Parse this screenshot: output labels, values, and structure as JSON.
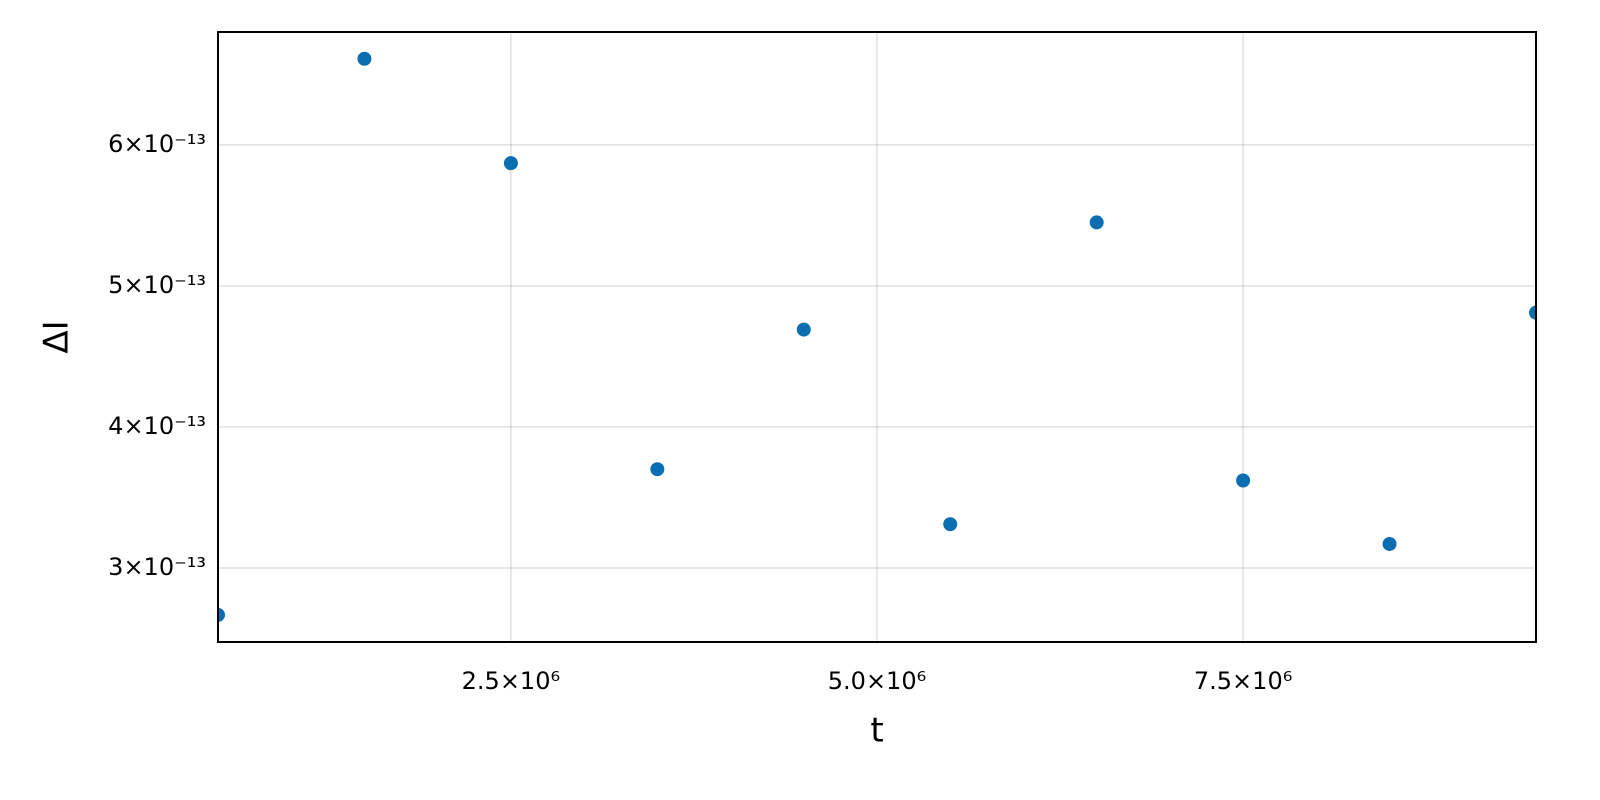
{
  "chart_data": {
    "type": "scatter",
    "x_label": "t",
    "y_label": "ΔI",
    "series": [
      {
        "color": "#0a6eb0",
        "x": [
          500000,
          1500000,
          2500000,
          3500000,
          4500000,
          5500000,
          6500000,
          7500000,
          8500000,
          9500000
        ],
        "values": [
          2.667e-13,
          6.61e-13,
          5.87e-13,
          3.7e-13,
          4.69e-13,
          3.31e-13,
          5.45e-13,
          3.62e-13,
          3.17e-13,
          4.81e-13
        ]
      }
    ],
    "xlim": [
      500000,
      9500000
    ],
    "xticks": [
      {
        "value": 2500000,
        "label": "2.5×10⁶"
      },
      {
        "value": 5000000,
        "label": "5.0×10⁶"
      },
      {
        "value": 7500000,
        "label": "7.5×10⁶"
      }
    ],
    "ylim": [
      2.475e-13,
      6.8e-13
    ],
    "yticks": [
      {
        "value": 3e-13,
        "label": "3×10⁻¹³"
      },
      {
        "value": 4e-13,
        "label": "4×10⁻¹³"
      },
      {
        "value": 5e-13,
        "label": "5×10⁻¹³"
      },
      {
        "value": 6e-13,
        "label": "6×10⁻¹³"
      }
    ],
    "grid": true
  }
}
